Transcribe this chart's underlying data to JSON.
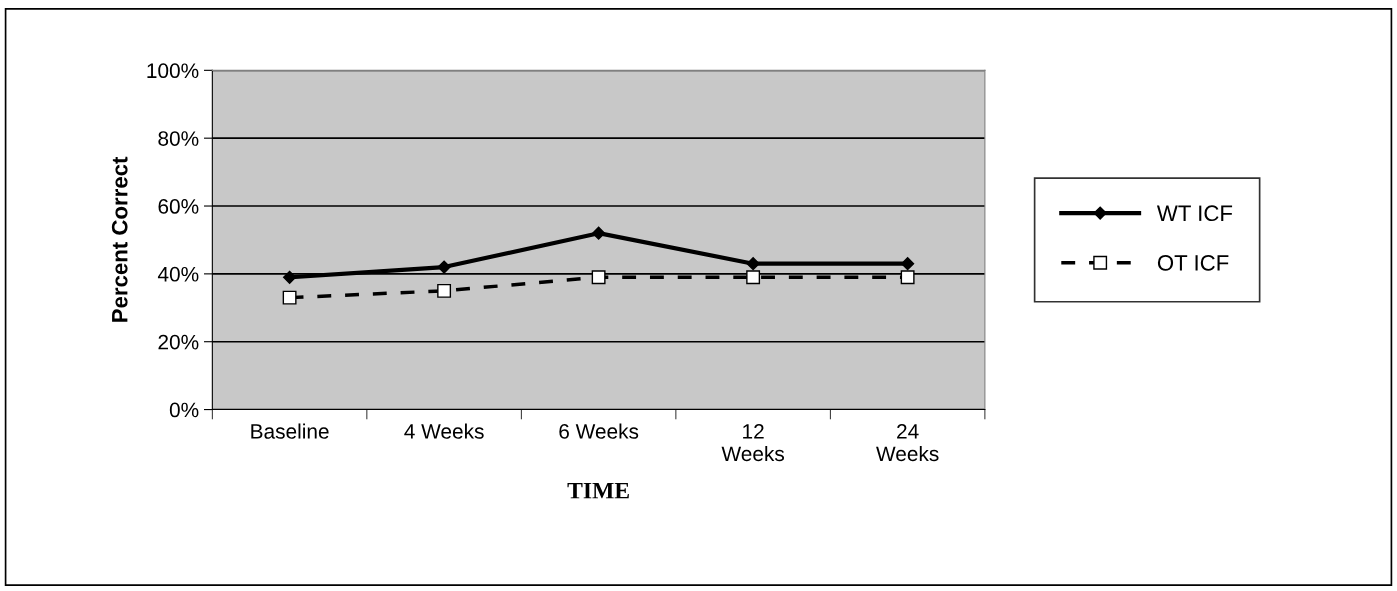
{
  "chart_data": {
    "type": "line",
    "xlabel": "TIME",
    "ylabel": "Percent Correct",
    "categories": [
      "Baseline",
      "4 Weeks",
      "6 Weeks",
      "12\nWeeks",
      "24\nWeeks"
    ],
    "series": [
      {
        "name": "WT ICF",
        "color": "#000000",
        "marker": "diamond",
        "line_style": "solid",
        "values": [
          39,
          42,
          52,
          43,
          43
        ]
      },
      {
        "name": "OT ICF",
        "color": "#000000",
        "marker": "square",
        "line_style": "dashed",
        "values": [
          33,
          35,
          39,
          39,
          39
        ]
      }
    ],
    "ylim": [
      0,
      100
    ],
    "yticks": [
      {
        "value": 0,
        "label": "0%"
      },
      {
        "value": 20,
        "label": "20%"
      },
      {
        "value": 40,
        "label": "40%"
      },
      {
        "value": 60,
        "label": "60%"
      },
      {
        "value": 80,
        "label": "80%"
      },
      {
        "value": 100,
        "label": "100%"
      }
    ],
    "grid": "y",
    "legend": "right"
  }
}
